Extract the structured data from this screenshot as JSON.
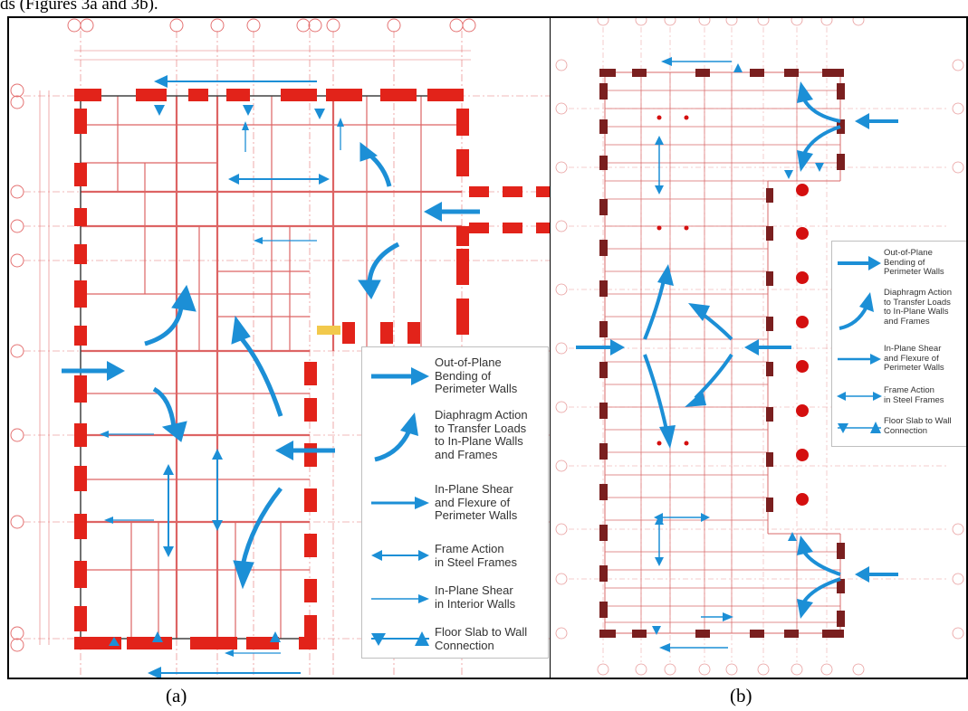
{
  "top_caption": "ds (Figures 3a and 3b).",
  "legend": [
    {
      "icon": "bold-arrow-icon",
      "label": "Out-of-Plane\nBending of\nPerimeter Walls"
    },
    {
      "icon": "curved-arrow-icon",
      "label": "Diaphragm Action\nto Transfer Loads\nto In-Plane Walls\nand Frames"
    },
    {
      "icon": "arrow-icon",
      "label": "In-Plane Shear\nand Flexure of\nPerimeter Walls"
    },
    {
      "icon": "double-arrow-icon",
      "label": "Frame Action\nin Steel Frames"
    },
    {
      "icon": "thin-arrow-icon",
      "label": "In-Plane Shear\nin Interior Walls"
    },
    {
      "icon": "triangle-icon",
      "label": "Floor Slab to Wall\nConnection"
    }
  ],
  "legend_b": [
    {
      "icon": "bold-arrow-icon",
      "label": "Out-of-Plane\nBending of\nPerimeter Walls"
    },
    {
      "icon": "curved-arrow-icon",
      "label": "Diaphragm Action\nto Transfer Loads\nto In-Plane Walls\nand Frames"
    },
    {
      "icon": "arrow-icon",
      "label": "In-Plane Shear\nand Flexure of\nPerimeter Walls"
    },
    {
      "icon": "double-arrow-icon",
      "label": "Frame Action\nin Steel Frames"
    },
    {
      "icon": "triangle-icon",
      "label": "Floor Slab to Wall\nConnection"
    }
  ],
  "captions": {
    "a": "(a)",
    "b": "(b)"
  },
  "colors": {
    "wall": "#e2231a",
    "wall_dark": "#7a1f1f",
    "arrow": "#1c8fd6",
    "grid": "#e05a5a"
  }
}
